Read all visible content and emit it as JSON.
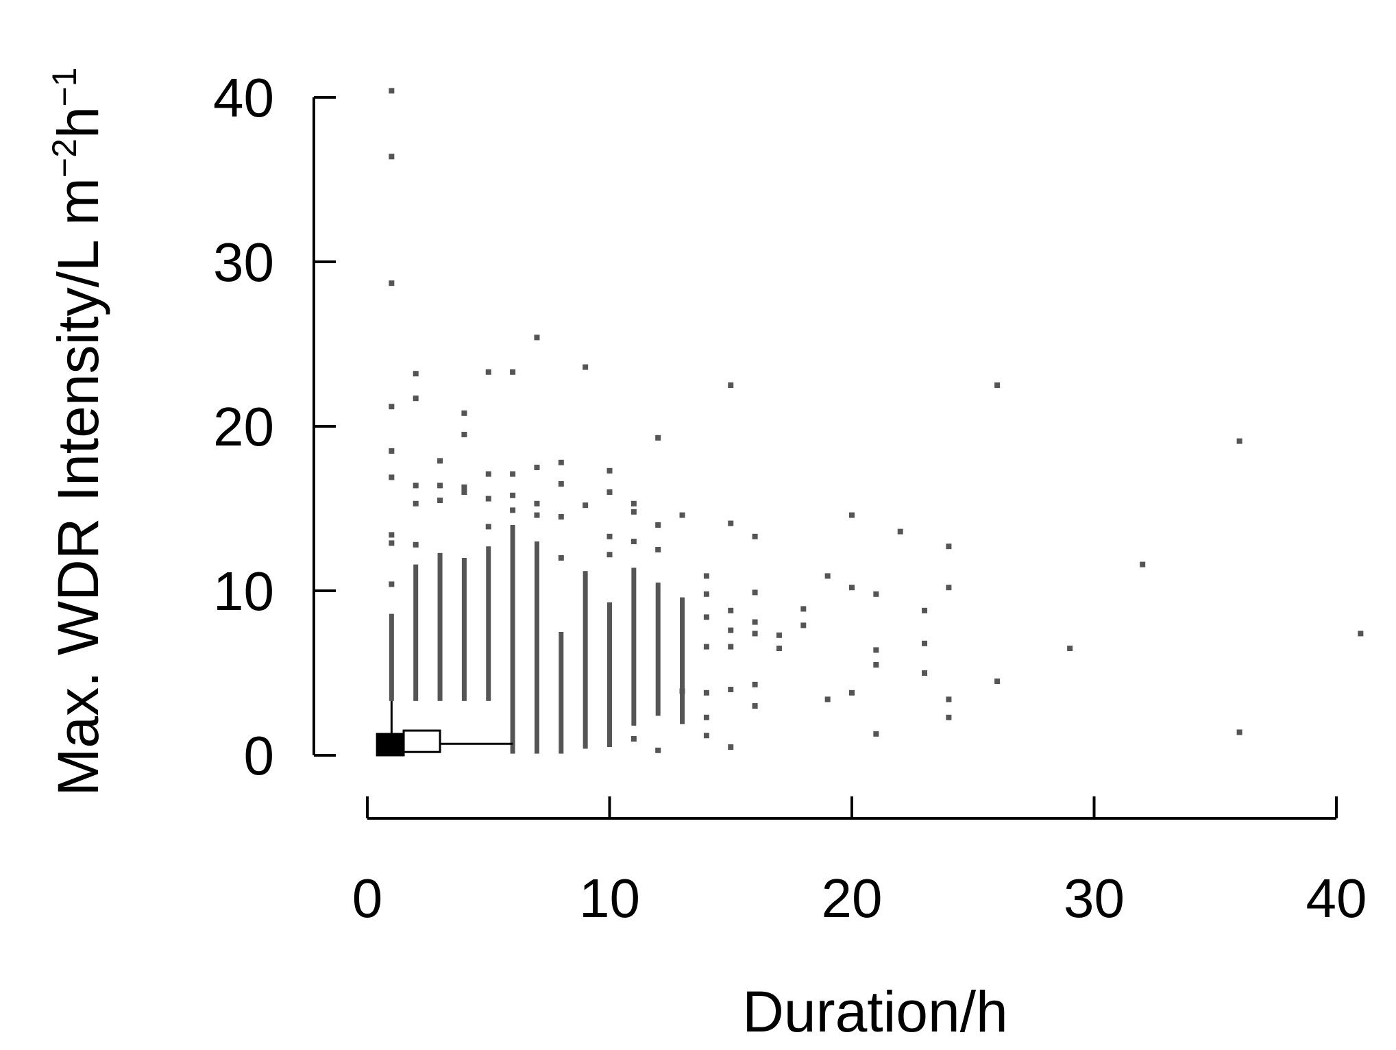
{
  "chart_data": {
    "type": "scatter",
    "title": "",
    "xlabel": "Duration/h",
    "ylabel": {
      "main": "Max. WDR Intensity/L m",
      "sup1": "−2",
      "mid": "h",
      "sup2": "−1"
    },
    "xlim": [
      0,
      40
    ],
    "ylim": [
      0,
      40
    ],
    "xticks": [
      "0",
      "10",
      "20",
      "30",
      "40"
    ],
    "yticks": [
      "0",
      "10",
      "20",
      "30",
      "40"
    ],
    "grid": false,
    "legend": "none",
    "point_color": "#555555",
    "vertical_ranges": [
      {
        "x": 1,
        "y_from": 3.3,
        "y_to": 8.6
      },
      {
        "x": 2,
        "y_from": 3.3,
        "y_to": 11.6
      },
      {
        "x": 3,
        "y_from": 3.3,
        "y_to": 12.3
      },
      {
        "x": 4,
        "y_from": 3.3,
        "y_to": 12.0
      },
      {
        "x": 5,
        "y_from": 3.3,
        "y_to": 12.7
      },
      {
        "x": 6,
        "y_from": 0.1,
        "y_to": 14.0
      },
      {
        "x": 7,
        "y_from": 0.1,
        "y_to": 13.0
      },
      {
        "x": 8,
        "y_from": 0.1,
        "y_to": 7.5
      },
      {
        "x": 9,
        "y_from": 0.4,
        "y_to": 11.2
      },
      {
        "x": 10,
        "y_from": 0.5,
        "y_to": 9.3
      },
      {
        "x": 11,
        "y_from": 1.8,
        "y_to": 11.4
      },
      {
        "x": 12,
        "y_from": 2.4,
        "y_to": 10.5
      },
      {
        "x": 13,
        "y_from": 1.9,
        "y_to": 9.6
      }
    ],
    "points": [
      [
        1,
        40.4
      ],
      [
        1,
        36.4
      ],
      [
        1,
        28.7
      ],
      [
        1,
        21.2
      ],
      [
        1,
        18.5
      ],
      [
        1,
        16.9
      ],
      [
        1,
        13.4
      ],
      [
        1,
        12.9
      ],
      [
        1,
        10.4
      ],
      [
        2,
        23.2
      ],
      [
        2,
        21.7
      ],
      [
        2,
        16.4
      ],
      [
        2,
        15.3
      ],
      [
        2,
        12.8
      ],
      [
        3,
        17.9
      ],
      [
        3,
        16.4
      ],
      [
        3,
        15.5
      ],
      [
        4,
        20.8
      ],
      [
        4,
        19.5
      ],
      [
        4,
        16.3
      ],
      [
        4,
        16.0
      ],
      [
        5,
        23.3
      ],
      [
        5,
        17.1
      ],
      [
        5,
        15.6
      ],
      [
        5,
        13.9
      ],
      [
        6,
        23.3
      ],
      [
        6,
        17.1
      ],
      [
        6,
        15.8
      ],
      [
        6,
        14.9
      ],
      [
        7,
        25.4
      ],
      [
        7,
        17.5
      ],
      [
        7,
        15.3
      ],
      [
        7,
        14.6
      ],
      [
        8,
        17.8
      ],
      [
        8,
        16.5
      ],
      [
        8,
        14.5
      ],
      [
        8,
        12.0
      ],
      [
        9,
        23.6
      ],
      [
        9,
        15.2
      ],
      [
        10,
        17.3
      ],
      [
        10,
        16.0
      ],
      [
        10,
        13.3
      ],
      [
        10,
        12.2
      ],
      [
        11,
        15.3
      ],
      [
        11,
        14.8
      ],
      [
        11,
        13.0
      ],
      [
        11,
        1.0
      ],
      [
        12,
        19.3
      ],
      [
        12,
        14.0
      ],
      [
        12,
        12.5
      ],
      [
        12,
        0.3
      ],
      [
        13,
        14.6
      ],
      [
        13,
        3.9
      ],
      [
        14,
        10.9
      ],
      [
        14,
        9.8
      ],
      [
        14,
        8.4
      ],
      [
        14,
        6.6
      ],
      [
        14,
        3.8
      ],
      [
        14,
        2.3
      ],
      [
        14,
        1.2
      ],
      [
        15,
        22.5
      ],
      [
        15,
        14.1
      ],
      [
        15,
        8.8
      ],
      [
        15,
        7.6
      ],
      [
        15,
        6.6
      ],
      [
        15,
        4.0
      ],
      [
        15,
        0.5
      ],
      [
        16,
        13.3
      ],
      [
        16,
        9.9
      ],
      [
        16,
        8.1
      ],
      [
        16,
        7.4
      ],
      [
        16,
        4.3
      ],
      [
        16,
        3.0
      ],
      [
        17,
        7.3
      ],
      [
        17,
        6.5
      ],
      [
        18,
        8.9
      ],
      [
        18,
        7.9
      ],
      [
        19,
        10.9
      ],
      [
        19,
        3.4
      ],
      [
        20,
        14.6
      ],
      [
        20,
        10.2
      ],
      [
        20,
        3.8
      ],
      [
        21,
        9.8
      ],
      [
        21,
        6.4
      ],
      [
        21,
        5.5
      ],
      [
        21,
        1.3
      ],
      [
        22,
        13.6
      ],
      [
        23,
        8.8
      ],
      [
        23,
        6.8
      ],
      [
        23,
        5.0
      ],
      [
        24,
        12.7
      ],
      [
        24,
        10.2
      ],
      [
        24,
        3.4
      ],
      [
        24,
        2.3
      ],
      [
        26,
        22.5
      ],
      [
        26,
        4.5
      ],
      [
        29,
        6.5
      ],
      [
        32,
        11.6
      ],
      [
        36,
        19.1
      ],
      [
        36,
        1.4
      ],
      [
        41,
        7.4
      ]
    ],
    "boxplot": {
      "filled_box": {
        "x_from": 0.4,
        "x_to": 1.5,
        "y_from": 0.0,
        "y_to": 1.3
      },
      "open_box": {
        "x_from": 1.5,
        "x_to": 3.0,
        "y_from": 0.2,
        "y_to": 1.5
      },
      "whisker_horizontal": {
        "x_from": 0.4,
        "x_to": 6.0,
        "y": 0.7
      },
      "whisker_vertical": {
        "x": 1,
        "y_from": 1.3,
        "y_to": 3.3
      }
    }
  }
}
